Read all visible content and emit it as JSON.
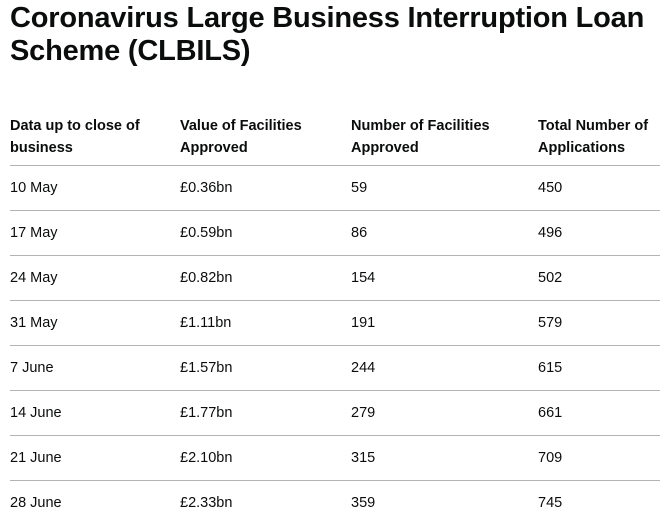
{
  "title": "Coronavirus Large Business Interruption Loan Scheme (CLBILS)",
  "table": {
    "headers": [
      "Data up to close of business",
      "Value of Facilities Approved",
      "Number of Facilities Approved",
      "Total Number of Applications"
    ],
    "rows": [
      [
        "10 May",
        "£0.36bn",
        "59",
        "450"
      ],
      [
        "17 May",
        "£0.59bn",
        "86",
        "496"
      ],
      [
        "24 May",
        "£0.82bn",
        "154",
        "502"
      ],
      [
        "31 May",
        "£1.11bn",
        "191",
        "579"
      ],
      [
        "7 June",
        "£1.57bn",
        "244",
        "615"
      ],
      [
        "14 June",
        "£1.77bn",
        "279",
        "661"
      ],
      [
        "21 June",
        "£2.10bn",
        "315",
        "709"
      ],
      [
        "28 June",
        "£2.33bn",
        "359",
        "745"
      ]
    ]
  }
}
